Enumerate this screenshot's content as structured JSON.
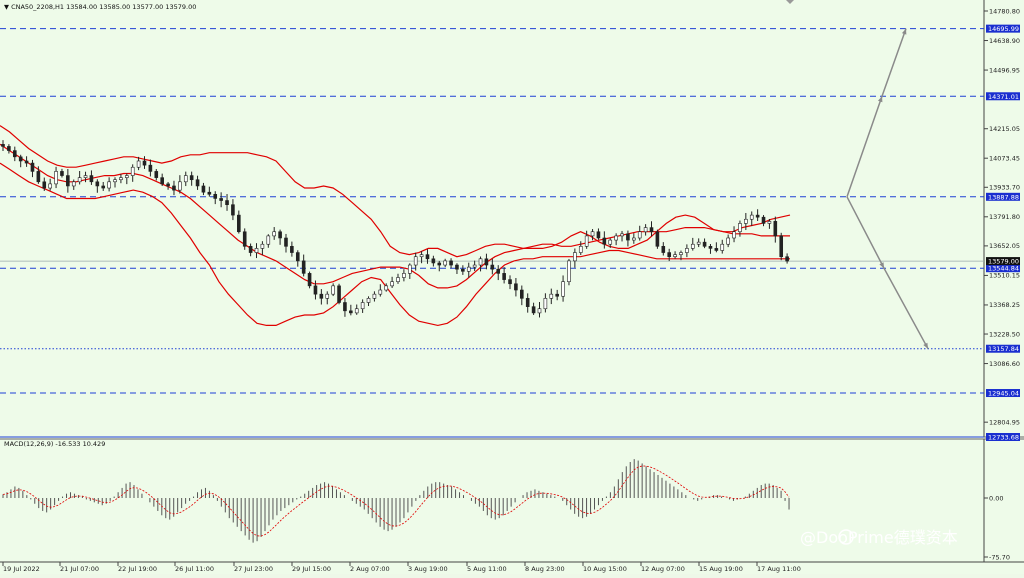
{
  "header": {
    "symbol_line": "▼ CNA50_2208,H1  13584.00 13585.00 13577.00 13579.00",
    "macd_line": "MACD(12,26,9) -16.533 10.429"
  },
  "colors": {
    "background": "#eefbe9",
    "candle": "#222222",
    "bollinger": "#e00000",
    "level_line": "#1f3fd6",
    "level_tag": "#1a2fd0",
    "price_tag": "#111111",
    "arrow": "#8a8a8a",
    "macd_signal": "#e00000",
    "macd_hist": "#555555"
  },
  "price_axis": {
    "ticks": [
      "14780.80",
      "14638.90",
      "14496.95",
      "14215.05",
      "14073.45",
      "13933.70",
      "13791.80",
      "13652.05",
      "13510.15",
      "13368.25",
      "13228.50",
      "13086.60",
      "12804.95"
    ],
    "min": 12733.68,
    "max": 14800.0
  },
  "levels": [
    {
      "label": "14695.99",
      "value": 14695.99,
      "style": "dash"
    },
    {
      "label": "14371.01",
      "value": 14371.01,
      "style": "dash"
    },
    {
      "label": "13887.88",
      "value": 13887.88,
      "style": "dash"
    },
    {
      "label": "13544.84",
      "value": 13544.84,
      "style": "dash"
    },
    {
      "label": "13157.84",
      "value": 13157.84,
      "style": "dot"
    },
    {
      "label": "12945.04",
      "value": 12945.04,
      "style": "dash"
    },
    {
      "label": "12733.68",
      "value": 12733.68,
      "style": "solid"
    }
  ],
  "current_price": {
    "label": "13579.00",
    "value": 13579.0
  },
  "time_axis": [
    "19 Jul 2022",
    "21 Jul 07:00",
    "22 Jul 19:00",
    "26 Jul 11:00",
    "27 Jul 23:00",
    "29 Jul 15:00",
    "2 Aug 07:00",
    "3 Aug 19:00",
    "5 Aug 11:00",
    "8 Aug 23:00",
    "10 Aug 15:00",
    "12 Aug 07:00",
    "15 Aug 19:00",
    "17 Aug 11:00"
  ],
  "macd_axis": [
    "0.00",
    "-75.70"
  ],
  "watermark": "@DooPrime德璞资本",
  "chart_data": {
    "type": "candlestick",
    "title": "CNA50_2208,H1",
    "symbol": "CNA50_2208",
    "timeframe": "H1",
    "last_bar": {
      "open": 13584.0,
      "high": 13585.0,
      "low": 13577.0,
      "close": 13579.0
    },
    "close_path": [
      14130,
      14110,
      14080,
      14060,
      14050,
      14010,
      13960,
      13930,
      13950,
      14010,
      13990,
      13940,
      13960,
      13980,
      13990,
      13960,
      13940,
      13930,
      13960,
      13970,
      13980,
      13990,
      14030,
      14060,
      14040,
      14010,
      13980,
      13950,
      13940,
      13920,
      13960,
      13990,
      13970,
      13940,
      13910,
      13900,
      13880,
      13870,
      13850,
      13800,
      13720,
      13650,
      13620,
      13640,
      13660,
      13700,
      13720,
      13690,
      13650,
      13620,
      13580,
      13520,
      13460,
      13420,
      13400,
      13420,
      13460,
      13380,
      13340,
      13330,
      13350,
      13380,
      13400,
      13420,
      13440,
      13460,
      13480,
      13500,
      13520,
      13560,
      13600,
      13610,
      13590,
      13570,
      13560,
      13580,
      13560,
      13540,
      13530,
      13550,
      13560,
      13590,
      13560,
      13540,
      13520,
      13490,
      13470,
      13440,
      13400,
      13360,
      13330,
      13350,
      13400,
      13420,
      13410,
      13480,
      13580,
      13620,
      13650,
      13700,
      13720,
      13690,
      13660,
      13680,
      13700,
      13710,
      13680,
      13690,
      13720,
      13740,
      13720,
      13650,
      13620,
      13600,
      13610,
      13620,
      13640,
      13660,
      13670,
      13650,
      13640,
      13630,
      13660,
      13690,
      13720,
      13760,
      13780,
      13800,
      13790,
      13760,
      13770,
      13700,
      13600,
      13579
    ],
    "bollinger_upper": [
      14230,
      14200,
      14160,
      14120,
      14090,
      14060,
      14040,
      14030,
      14030,
      14040,
      14050,
      14060,
      14070,
      14080,
      14080,
      14070,
      14060,
      14050,
      14060,
      14080,
      14090,
      14090,
      14100,
      14100,
      14100,
      14100,
      14100,
      14090,
      14080,
      14060,
      14010,
      13960,
      13930,
      13930,
      13940,
      13930,
      13900,
      13860,
      13820,
      13780,
      13720,
      13650,
      13620,
      13610,
      13620,
      13640,
      13640,
      13620,
      13600,
      13610,
      13630,
      13650,
      13660,
      13660,
      13650,
      13640,
      13640,
      13640,
      13650,
      13670,
      13700,
      13720,
      13700,
      13670,
      13650,
      13640,
      13640,
      13660,
      13680,
      13720,
      13760,
      13790,
      13800,
      13790,
      13760,
      13730,
      13720,
      13720,
      13740,
      13750,
      13760,
      13780,
      13790,
      13800
    ],
    "bollinger_middle": [
      14140,
      14110,
      14080,
      14050,
      14020,
      13990,
      13970,
      13960,
      13960,
      13970,
      13980,
      13990,
      13990,
      14000,
      14000,
      13990,
      13970,
      13950,
      13930,
      13910,
      13880,
      13840,
      13800,
      13760,
      13720,
      13680,
      13650,
      13620,
      13600,
      13580,
      13550,
      13520,
      13490,
      13470,
      13470,
      13480,
      13500,
      13520,
      13530,
      13540,
      13550,
      13550,
      13550,
      13540,
      13510,
      13470,
      13450,
      13450,
      13460,
      13490,
      13530,
      13570,
      13600,
      13620,
      13630,
      13640,
      13650,
      13660,
      13660,
      13650,
      13650,
      13660,
      13670,
      13680,
      13690,
      13700,
      13710,
      13720,
      13720,
      13720,
      13720,
      13730,
      13740,
      13740,
      13740,
      13730,
      13720,
      13710,
      13710,
      13710,
      13700,
      13700,
      13700,
      13700
    ],
    "bollinger_lower": [
      14050,
      14020,
      13990,
      13960,
      13940,
      13920,
      13900,
      13880,
      13880,
      13880,
      13880,
      13890,
      13900,
      13910,
      13920,
      13910,
      13890,
      13860,
      13810,
      13750,
      13690,
      13620,
      13560,
      13480,
      13420,
      13370,
      13320,
      13280,
      13270,
      13270,
      13290,
      13310,
      13320,
      13320,
      13330,
      13360,
      13400,
      13440,
      13480,
      13500,
      13490,
      13430,
      13370,
      13320,
      13290,
      13280,
      13270,
      13280,
      13310,
      13360,
      13420,
      13470,
      13520,
      13560,
      13580,
      13590,
      13590,
      13600,
      13600,
      13600,
      13600,
      13600,
      13610,
      13620,
      13630,
      13630,
      13620,
      13610,
      13600,
      13590,
      13590,
      13590,
      13590,
      13590,
      13590,
      13590,
      13590,
      13590,
      13590,
      13590,
      13590,
      13590,
      13590,
      13590
    ],
    "projection_arrows": [
      {
        "from": 13887.88,
        "to": 14695.99,
        "label": "up"
      },
      {
        "from": 13887.88,
        "to": 13157.84,
        "label": "down"
      }
    ],
    "macd": {
      "name": "MACD(12,26,9)",
      "value": -16.533,
      "signal": 10.429,
      "histogram": [
        5,
        8,
        12,
        16,
        14,
        10,
        4,
        -2,
        -8,
        -14,
        -18,
        -20,
        -16,
        -10,
        -4,
        2,
        6,
        8,
        6,
        4,
        2,
        -2,
        -4,
        -6,
        -8,
        -10,
        -8,
        -4,
        2,
        8,
        14,
        20,
        22,
        18,
        12,
        6,
        0,
        -6,
        -12,
        -18,
        -24,
        -28,
        -30,
        -26,
        -20,
        -14,
        -8,
        -4,
        2,
        8,
        12,
        14,
        10,
        4,
        -4,
        -12,
        -20,
        -28,
        -34,
        -40,
        -46,
        -52,
        -58,
        -62,
        -60,
        -54,
        -46,
        -38,
        -30,
        -24,
        -18,
        -14,
        -10,
        -6,
        -2,
        2,
        6,
        10,
        14,
        18,
        20,
        22,
        20,
        16,
        12,
        8,
        4,
        0,
        -4,
        -8,
        -12,
        -16,
        -22,
        -28,
        -34,
        -40,
        -44,
        -46,
        -44,
        -40,
        -34,
        -28,
        -20,
        -12,
        -4,
        4,
        10,
        16,
        20,
        22,
        22,
        20,
        18,
        16,
        12,
        8,
        4,
        0,
        -4,
        -8,
        -12,
        -18,
        -24,
        -28,
        -30,
        -28,
        -24,
        -18,
        -12,
        -6,
        0,
        4,
        8,
        10,
        12,
        10,
        8,
        6,
        4,
        2,
        0,
        -4,
        -10,
        -16,
        -22,
        -26,
        -28,
        -26,
        -22,
        -16,
        -10,
        -4,
        2,
        8,
        16,
        26,
        36,
        44,
        50,
        54,
        52,
        48,
        44,
        40,
        36,
        32,
        28,
        24,
        20,
        16,
        12,
        8,
        4,
        0,
        -2,
        -4,
        -2,
        0,
        2,
        4,
        4,
        2,
        0,
        -2,
        -4,
        -2,
        0,
        2,
        6,
        10,
        14,
        18,
        20,
        20,
        18,
        14,
        10,
        -4,
        -16
      ]
    },
    "ylim": [
      12733.68,
      14800.0
    ]
  }
}
